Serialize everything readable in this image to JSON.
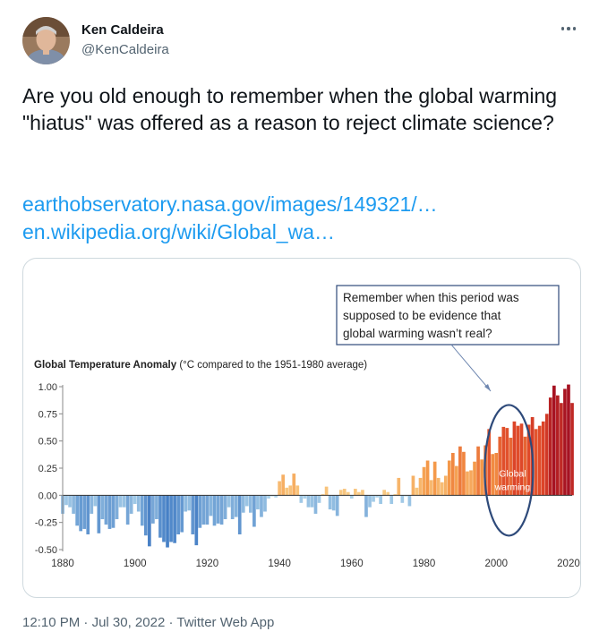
{
  "author": {
    "name": "Ken Caldeira",
    "handle": "@KenCaldeira"
  },
  "tweet": {
    "text": "Are you old enough to remember when the global warming \"hiatus\" was offered as a reason to reject climate science?",
    "links": [
      "earthobservatory.nasa.gov/images/149321/…",
      "en.wikipedia.org/wiki/Global_wa…"
    ]
  },
  "footer": {
    "time": "12:10 PM",
    "date": "Jul 30, 2022",
    "source": "Twitter Web App",
    "separator": "·"
  },
  "icons": {
    "more": "more-dots-icon"
  },
  "colors": {
    "link": "#1d9bf0",
    "secondary_text": "#536471",
    "ellipse": "#2e4a7a",
    "annotation_border": "#2e4a7a"
  },
  "chart_data": {
    "type": "bar",
    "title": "Global Temperature Anomaly",
    "title_note": "(°C compared to the 1951-1980 average)",
    "annotation": "Remember when this period was supposed to be evidence that global warming wasn’t real?",
    "hiatus_label": "Global warming “haitus”",
    "xlim": [
      1880,
      2021
    ],
    "ylim": [
      -0.5,
      1.0
    ],
    "x_ticks": [
      "1880",
      "1900",
      "1920",
      "1940",
      "1960",
      "1980",
      "2000",
      "2020"
    ],
    "y_ticks": [
      "1.00",
      "0.75",
      "0.50",
      "0.25",
      "0.00",
      "-0.25",
      "-0.50"
    ],
    "x": [
      1880,
      1881,
      1882,
      1883,
      1884,
      1885,
      1886,
      1887,
      1888,
      1889,
      1890,
      1891,
      1892,
      1893,
      1894,
      1895,
      1896,
      1897,
      1898,
      1899,
      1900,
      1901,
      1902,
      1903,
      1904,
      1905,
      1906,
      1907,
      1908,
      1909,
      1910,
      1911,
      1912,
      1913,
      1914,
      1915,
      1916,
      1917,
      1918,
      1919,
      1920,
      1921,
      1922,
      1923,
      1924,
      1925,
      1926,
      1927,
      1928,
      1929,
      1930,
      1931,
      1932,
      1933,
      1934,
      1935,
      1936,
      1937,
      1938,
      1939,
      1940,
      1941,
      1942,
      1943,
      1944,
      1945,
      1946,
      1947,
      1948,
      1949,
      1950,
      1951,
      1952,
      1953,
      1954,
      1955,
      1956,
      1957,
      1958,
      1959,
      1960,
      1961,
      1962,
      1963,
      1964,
      1965,
      1966,
      1967,
      1968,
      1969,
      1970,
      1971,
      1972,
      1973,
      1974,
      1975,
      1976,
      1977,
      1978,
      1979,
      1980,
      1981,
      1982,
      1983,
      1984,
      1985,
      1986,
      1987,
      1988,
      1989,
      1990,
      1991,
      1992,
      1993,
      1994,
      1995,
      1996,
      1997,
      1998,
      1999,
      2000,
      2001,
      2002,
      2003,
      2004,
      2005,
      2006,
      2007,
      2008,
      2009,
      2010,
      2011,
      2012,
      2013,
      2014,
      2015,
      2016,
      2017,
      2018,
      2019,
      2020,
      2021
    ],
    "values": [
      -0.17,
      -0.09,
      -0.11,
      -0.17,
      -0.28,
      -0.33,
      -0.31,
      -0.36,
      -0.17,
      -0.1,
      -0.35,
      -0.22,
      -0.27,
      -0.31,
      -0.3,
      -0.22,
      -0.11,
      -0.11,
      -0.27,
      -0.17,
      -0.08,
      -0.15,
      -0.28,
      -0.37,
      -0.47,
      -0.26,
      -0.22,
      -0.39,
      -0.43,
      -0.48,
      -0.43,
      -0.44,
      -0.36,
      -0.34,
      -0.15,
      -0.14,
      -0.36,
      -0.46,
      -0.3,
      -0.27,
      -0.27,
      -0.19,
      -0.28,
      -0.26,
      -0.27,
      -0.22,
      -0.11,
      -0.22,
      -0.2,
      -0.36,
      -0.16,
      -0.1,
      -0.16,
      -0.29,
      -0.13,
      -0.2,
      -0.15,
      -0.03,
      -0.01,
      -0.02,
      0.13,
      0.19,
      0.07,
      0.09,
      0.2,
      0.09,
      -0.07,
      -0.03,
      -0.11,
      -0.11,
      -0.17,
      -0.07,
      0.01,
      0.08,
      -0.13,
      -0.14,
      -0.19,
      0.05,
      0.06,
      0.03,
      -0.03,
      0.06,
      0.03,
      0.05,
      -0.2,
      -0.11,
      -0.06,
      -0.02,
      -0.08,
      0.05,
      0.03,
      -0.08,
      0.01,
      0.16,
      -0.07,
      -0.01,
      -0.1,
      0.18,
      0.07,
      0.16,
      0.26,
      0.32,
      0.14,
      0.31,
      0.16,
      0.12,
      0.18,
      0.32,
      0.39,
      0.27,
      0.45,
      0.4,
      0.22,
      0.23,
      0.31,
      0.45,
      0.33,
      0.46,
      0.61,
      0.38,
      0.39,
      0.54,
      0.63,
      0.62,
      0.53,
      0.68,
      0.64,
      0.66,
      0.54,
      0.65,
      0.72,
      0.61,
      0.64,
      0.68,
      0.75,
      0.9,
      1.01,
      0.92,
      0.85,
      0.98,
      1.02,
      0.85
    ],
    "grid": false,
    "legend": "none"
  }
}
